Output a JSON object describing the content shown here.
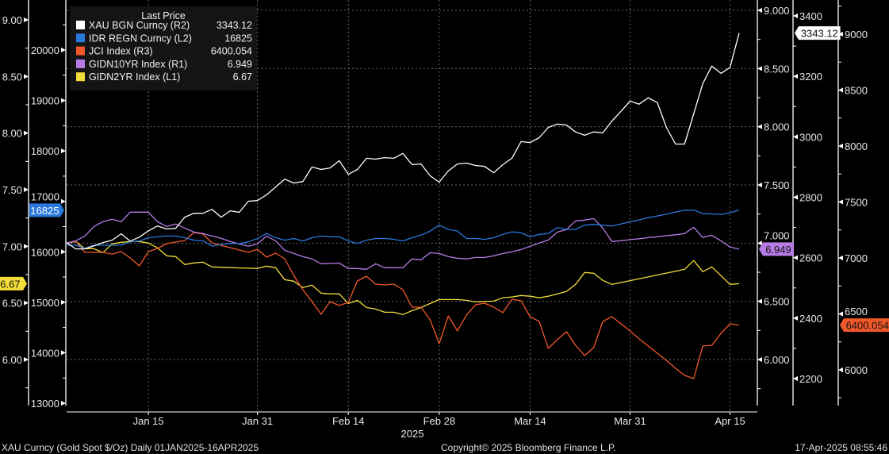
{
  "chart_data": {
    "type": "line",
    "title": "",
    "xlabel": "2025",
    "footer": {
      "left": "XAU Curncy (Gold Spot  $/Oz)  Daily 01JAN2025-16APR2025",
      "center": "Copyright© 2025 Bloomberg Finance L.P.",
      "right": "17-Apr-2025 08:55:46"
    },
    "x_ticks": [
      {
        "label": "Jan 15",
        "index": 9
      },
      {
        "label": "Jan 31",
        "index": 21
      },
      {
        "label": "Feb 14",
        "index": 31
      },
      {
        "label": "Feb 28",
        "index": 41
      },
      {
        "label": "Mar 14",
        "index": 51
      },
      {
        "label": "Mar 31",
        "index": 62
      },
      {
        "label": "Apr 15",
        "index": 73
      }
    ],
    "x_range": [
      "2025-01-02",
      "2025-04-16"
    ],
    "legend": {
      "title": "Last Price",
      "placement": "top-left"
    },
    "axes": {
      "L1": {
        "ticks": [
          6.0,
          6.5,
          7.0,
          7.5,
          8.0,
          8.5,
          9.0
        ],
        "decimals": 2
      },
      "L2": {
        "ticks": [
          13000,
          14000,
          15000,
          16000,
          17000,
          18000,
          19000,
          20000
        ],
        "decimals": 0
      },
      "R1": {
        "ticks": [
          6.0,
          6.5,
          7.0,
          7.5,
          8.0,
          8.5,
          9.0
        ],
        "decimals": 3
      },
      "R2": {
        "ticks": [
          2200,
          2400,
          2600,
          2800,
          3000,
          3200,
          3400
        ],
        "decimals": 0
      },
      "R3": {
        "ticks": [
          6000,
          6500,
          7000,
          7500,
          8000,
          8500,
          9000
        ],
        "decimals": 0
      }
    },
    "series": [
      {
        "name": "GIDN2YR Index",
        "axis": "L1",
        "axis_label": "(L1)",
        "last": "6.67",
        "color": "#f2dc3a",
        "values": [
          7.028,
          7.042,
          6.979,
          6.979,
          6.944,
          7.021,
          7.035,
          7.042,
          7.042,
          7.028,
          6.986,
          6.916,
          6.909,
          6.839,
          6.853,
          6.86,
          6.818,
          6.815,
          6.812,
          6.809,
          6.807,
          6.804,
          6.825,
          6.811,
          6.706,
          6.692,
          6.636,
          6.657,
          6.587,
          6.58,
          6.58,
          6.495,
          6.523,
          6.46,
          6.446,
          6.418,
          6.418,
          6.397,
          6.432,
          6.46,
          6.495,
          6.53,
          6.53,
          6.53,
          6.523,
          6.509,
          6.513,
          6.516,
          6.545,
          6.552,
          6.566,
          6.559,
          6.545,
          6.559,
          6.58,
          6.601,
          6.664,
          6.769,
          6.762,
          6.699,
          6.664,
          6.68,
          6.697,
          6.713,
          6.73,
          6.747,
          6.763,
          6.78,
          6.797,
          6.874,
          6.776,
          6.818,
          6.741,
          6.664,
          6.67
        ]
      },
      {
        "name": "JCI Index",
        "axis": "R3",
        "axis_label": "(R3)",
        "last": "6400.054",
        "color": "#f0582a",
        "values": [
          7135,
          7149,
          7050,
          7050,
          7050,
          7035,
          7057,
          7000,
          6929,
          7057,
          7085,
          7128,
          7142,
          7156,
          7227,
          7213,
          7135,
          7113,
          7092,
          7071,
          7050,
          7078,
          7007,
          7043,
          6993,
          6844,
          6716,
          6610,
          6497,
          6610,
          6575,
          6603,
          6794,
          6837,
          6766,
          6759,
          6766,
          6716,
          6560,
          6560,
          6447,
          6234,
          6482,
          6348,
          6490,
          6582,
          6596,
          6560,
          6511,
          6631,
          6617,
          6475,
          6433,
          6192,
          6270,
          6341,
          6220,
          6128,
          6199,
          6433,
          6475,
          6412,
          6348,
          6277,
          6213,
          6149,
          6085,
          6014,
          5951,
          5922,
          6213,
          6220,
          6326,
          6412,
          6400.054
        ]
      },
      {
        "name": "GIDN10YR Index",
        "axis": "R1",
        "axis_label": "(R1)",
        "last": "6.949",
        "color": "#b77be6",
        "values": [
          7.0,
          7.02,
          7.061,
          7.143,
          7.184,
          7.205,
          7.184,
          7.266,
          7.266,
          7.266,
          7.184,
          7.143,
          7.164,
          7.13,
          7.095,
          7.082,
          7.061,
          7.041,
          7.014,
          6.993,
          6.973,
          6.993,
          7.061,
          7.02,
          6.939,
          6.911,
          6.884,
          6.864,
          6.823,
          6.826,
          6.829,
          6.782,
          6.782,
          6.775,
          6.823,
          6.789,
          6.789,
          6.789,
          6.864,
          6.857,
          6.918,
          6.911,
          6.884,
          6.87,
          6.864,
          6.877,
          6.877,
          6.891,
          6.911,
          6.925,
          6.945,
          6.973,
          7.0,
          7.027,
          7.095,
          7.116,
          7.191,
          7.198,
          7.211,
          7.13,
          7.014,
          7.021,
          7.03,
          7.038,
          7.047,
          7.055,
          7.064,
          7.072,
          7.082,
          7.136,
          7.048,
          7.068,
          7.02,
          6.966,
          6.949
        ]
      },
      {
        "name": "IDR REGN Curncy",
        "axis": "L2",
        "axis_label": "(L2)",
        "last": "16825",
        "color": "#2a78dc",
        "values": [
          16132,
          16132,
          16066,
          16132,
          16132,
          16132,
          16132,
          16198,
          16215,
          16280,
          16297,
          16313,
          16313,
          16280,
          16231,
          16215,
          16115,
          16148,
          16165,
          16165,
          16198,
          16264,
          16363,
          16280,
          16231,
          16264,
          16215,
          16280,
          16313,
          16297,
          16297,
          16215,
          16165,
          16231,
          16264,
          16264,
          16248,
          16215,
          16280,
          16330,
          16412,
          16528,
          16445,
          16412,
          16264,
          16264,
          16248,
          16280,
          16346,
          16396,
          16379,
          16297,
          16346,
          16363,
          16478,
          16445,
          16445,
          16528,
          16544,
          16528,
          16511,
          16551,
          16594,
          16634,
          16677,
          16711,
          16749,
          16787,
          16825,
          16825,
          16759,
          16750,
          16742,
          16775,
          16825
        ]
      },
      {
        "name": "XAU BGN Curncy",
        "axis": "R2",
        "axis_label": "(R2)",
        "last": "3343.12",
        "color": "#ffffff",
        "values": [
          2650,
          2629,
          2629,
          2639,
          2650,
          2658,
          2679,
          2655,
          2668,
          2689,
          2705,
          2695,
          2697,
          2734,
          2747,
          2747,
          2760,
          2734,
          2755,
          2750,
          2787,
          2789,
          2808,
          2834,
          2860,
          2847,
          2852,
          2900,
          2892,
          2897,
          2921,
          2876,
          2892,
          2929,
          2926,
          2931,
          2929,
          2945,
          2908,
          2910,
          2871,
          2850,
          2887,
          2910,
          2913,
          2905,
          2902,
          2881,
          2908,
          2929,
          2984,
          2981,
          2997,
          3031,
          3042,
          3039,
          3016,
          3005,
          3016,
          3013,
          3052,
          3084,
          3118,
          3108,
          3129,
          3113,
          3031,
          2976,
          2976,
          3076,
          3176,
          3234,
          3210,
          3229,
          3343.12
        ]
      }
    ],
    "legend_order": [
      4,
      3,
      1,
      2,
      0
    ]
  }
}
